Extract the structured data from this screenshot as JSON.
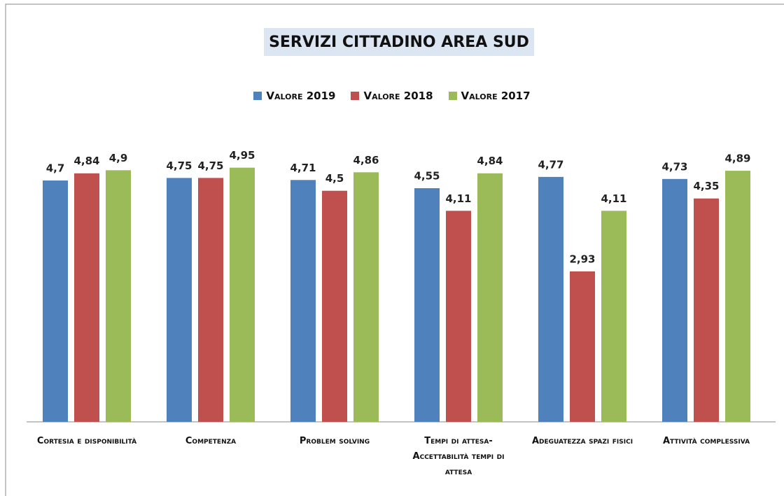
{
  "chart_data": {
    "type": "bar",
    "title": "SERVIZI CITTADINO AREA SUD",
    "categories": [
      "Cortesia e disponibilità",
      "Competenza",
      "Problem solving",
      "Tempi di attesa-Accettabilità tempi di attesa",
      "Adeguatezza spazi fisici",
      "Attività complessiva"
    ],
    "series": [
      {
        "name": "Valore 2019",
        "color": "#4f81bd",
        "values": [
          4.7,
          4.75,
          4.71,
          4.55,
          4.77,
          4.73
        ],
        "value_labels": [
          "4,7",
          "4,75",
          "4,71",
          "4,55",
          "4,77",
          "4,73"
        ]
      },
      {
        "name": "Valore 2018",
        "color": "#c0504d",
        "values": [
          4.84,
          4.75,
          4.5,
          4.11,
          2.93,
          4.35
        ],
        "value_labels": [
          "4,84",
          "4,75",
          "4,5",
          "4,11",
          "2,93",
          "4,35"
        ]
      },
      {
        "name": "Valore 2017",
        "color": "#9bbb59",
        "values": [
          4.9,
          4.95,
          4.86,
          4.84,
          4.11,
          4.89
        ],
        "value_labels": [
          "4,9",
          "4,95",
          "4,86",
          "4,84",
          "4,11",
          "4,89"
        ]
      }
    ],
    "ylim": [
      0,
      5
    ],
    "grid": false
  }
}
